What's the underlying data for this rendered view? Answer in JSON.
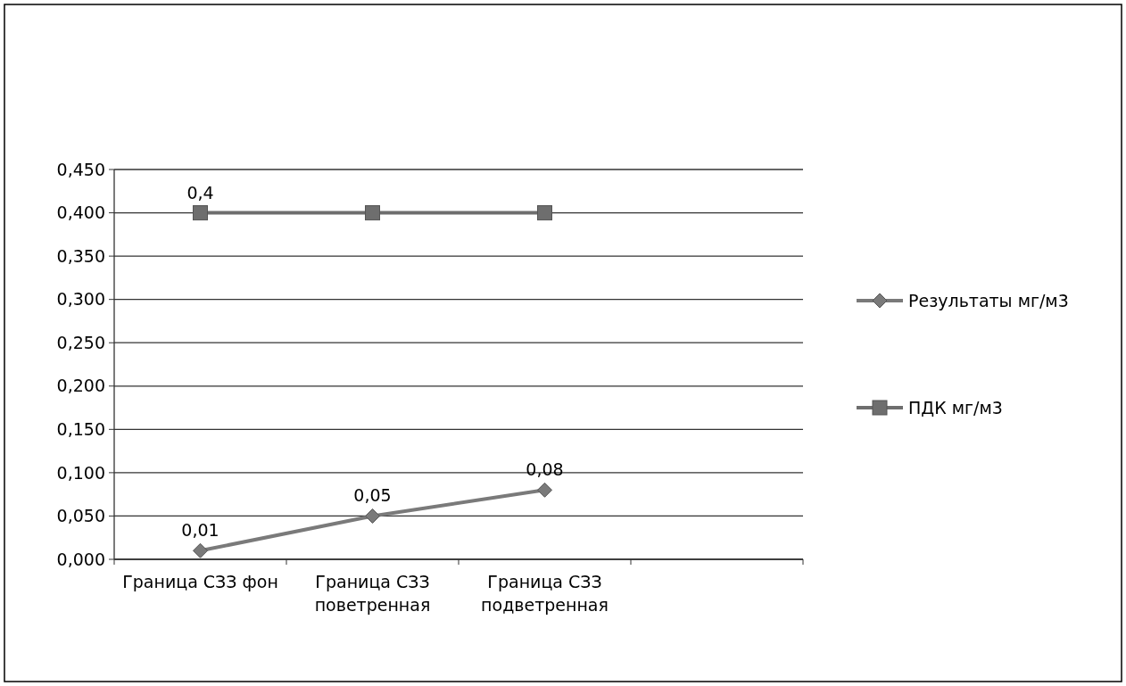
{
  "chart_data": {
    "type": "line",
    "categories": [
      "Граница СЗЗ фон",
      "Граница СЗЗ поветренная",
      "Граница СЗЗ подветренная",
      null
    ],
    "series": [
      {
        "name": "Результаты мг/м3",
        "color": "#7a7a7a",
        "marker": "diamond",
        "values": [
          0.01,
          0.05,
          0.08,
          null
        ],
        "value_labels": [
          "0,01",
          "0,05",
          "0,08",
          null
        ]
      },
      {
        "name": "ПДК мг/м3",
        "color": "#6e6e6e",
        "marker": "square",
        "values": [
          0.4,
          0.4,
          0.4,
          null
        ],
        "value_labels": [
          "0,4",
          null,
          null,
          null
        ]
      }
    ],
    "ylim": [
      0,
      0.45
    ],
    "yticks": [
      {
        "value": 0,
        "label": "0,000"
      },
      {
        "value": 0.05,
        "label": "0,050"
      },
      {
        "value": 0.1,
        "label": "0,100"
      },
      {
        "value": 0.15,
        "label": "0,150"
      },
      {
        "value": 0.2,
        "label": "0,200"
      },
      {
        "value": 0.25,
        "label": "0,250"
      },
      {
        "value": 0.3,
        "label": "0,300"
      },
      {
        "value": 0.35,
        "label": "0,350"
      },
      {
        "value": 0.4,
        "label": "0,400"
      },
      {
        "value": 0.45,
        "label": "0,450"
      }
    ],
    "grid": "y",
    "legend": "right",
    "line_style": "solid"
  }
}
